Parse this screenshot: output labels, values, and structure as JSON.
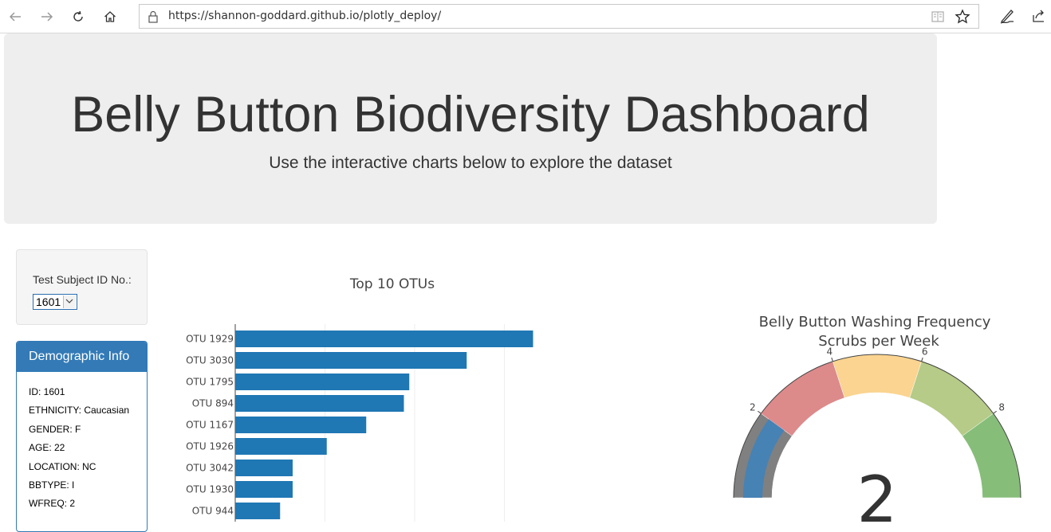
{
  "browser": {
    "url": "https://shannon-goddard.github.io/plotly_deploy/",
    "icons": [
      "back-icon",
      "forward-icon",
      "refresh-icon",
      "home-icon",
      "lock-icon",
      "reader-view-icon",
      "favorite-star-icon",
      "pen-icon",
      "share-icon"
    ]
  },
  "header": {
    "title": "Belly Button Biodiversity Dashboard",
    "subtitle": "Use the interactive charts below to explore the dataset"
  },
  "selector": {
    "label": "Test Subject ID No.:",
    "selected": "1601"
  },
  "demographics": {
    "heading": "Demographic Info",
    "rows": [
      "ID: 1601",
      "ETHNICITY: Caucasian",
      "GENDER: F",
      "AGE: 22",
      "LOCATION: NC",
      "BBTYPE: I",
      "WFREQ: 2"
    ]
  },
  "colors": {
    "bar": "#1f77b4",
    "panel": "#337ab7",
    "jumbotron": "#eeeeee"
  },
  "chart_data": [
    {
      "type": "bar",
      "orientation": "horizontal",
      "title": "Top 10 OTUs",
      "categories": [
        "OTU 1929",
        "OTU 3030",
        "OTU 1795",
        "OTU 894",
        "OTU 1167",
        "OTU 1926",
        "OTU 3042",
        "OTU 1930",
        "OTU 944"
      ],
      "values": [
        166,
        129,
        97,
        94,
        73,
        51,
        32,
        32,
        25
      ],
      "xlim": [
        0,
        200
      ],
      "grid": true
    },
    {
      "type": "gauge",
      "title": "Belly Button Washing Frequency",
      "subtitle": "Scrubs per Week",
      "value": 2,
      "range": [
        0,
        10
      ],
      "ticks": [
        2,
        4,
        6,
        8
      ],
      "steps": [
        {
          "range": [
            0,
            2
          ],
          "color": "#808080"
        },
        {
          "range": [
            2,
            4
          ],
          "color": "#dd8a8b"
        },
        {
          "range": [
            4,
            6
          ],
          "color": "#fad490"
        },
        {
          "range": [
            6,
            8
          ],
          "color": "#b5cb87"
        },
        {
          "range": [
            8,
            10
          ],
          "color": "#86be79"
        }
      ],
      "bar_color": "#4682b4"
    }
  ]
}
